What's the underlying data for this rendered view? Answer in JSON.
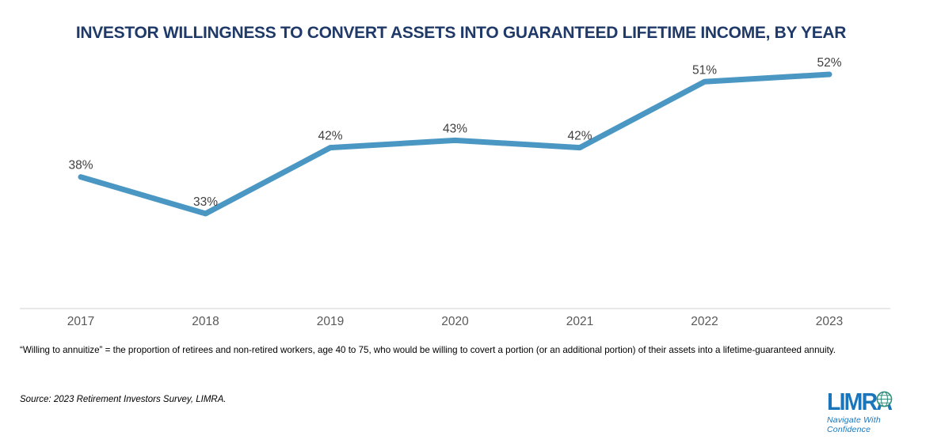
{
  "title": "INVESTOR WILLINGNESS TO CONVERT ASSETS INTO GUARANTEED LIFETIME INCOME, BY YEAR",
  "chart_data": {
    "type": "line",
    "categories": [
      "2017",
      "2018",
      "2019",
      "2020",
      "2021",
      "2022",
      "2023"
    ],
    "values": [
      38,
      33,
      42,
      43,
      42,
      51,
      52
    ],
    "point_labels": [
      "38%",
      "33%",
      "42%",
      "43%",
      "42%",
      "51%",
      "52%"
    ],
    "title": "INVESTOR WILLINGNESS TO CONVERT ASSETS INTO GUARANTEED LIFETIME INCOME, BY YEAR",
    "xlabel": "",
    "ylabel": "",
    "ylim": [
      20,
      60
    ],
    "grid": false,
    "legend": "none",
    "marker": "none",
    "line_width": 7
  },
  "colors": {
    "title": "#1F3968",
    "line": "#4A97C4",
    "axis": "#D9D9D9",
    "data_label": "#3F3F3F",
    "tick_label": "#595959",
    "logo_blue": "#1B75BB",
    "globe_teal": "#2E8F7C"
  },
  "footnote": "“Willing to annuitize” = the proportion of retirees and non-retired workers, age 40 to 75, who would be willing to covert a portion (or an additional portion) of their assets into a lifetime-guaranteed annuity.",
  "source": "Source: 2023 Retirement Investors Survey, LIMRA.",
  "logo": {
    "text": "LIMRA",
    "tagline": "Navigate With Confidence",
    "globe_icon": "globe-icon"
  }
}
